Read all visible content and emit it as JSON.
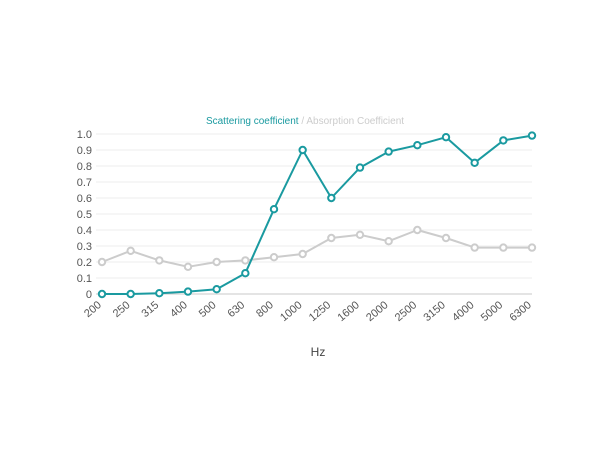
{
  "chart_data": {
    "type": "line",
    "title": "",
    "xlabel": "Hz",
    "ylabel": "",
    "categories": [
      "200",
      "250",
      "315",
      "400",
      "500",
      "630",
      "800",
      "1000",
      "1250",
      "1600",
      "2000",
      "2500",
      "3150",
      "4000",
      "5000",
      "6300"
    ],
    "yticks": [
      "0",
      "0.1",
      "0.2",
      "0.3",
      "0.4",
      "0.5",
      "0.6",
      "0.7",
      "0.8",
      "0.9",
      "1.0"
    ],
    "ylim": [
      0,
      1.0
    ],
    "grid": true,
    "legend_position": "top-center",
    "legend_separator": " / ",
    "series": [
      {
        "name": "Scattering coefficient",
        "color": "#1a9aa0",
        "values": [
          0.0,
          0.0,
          0.005,
          0.015,
          0.03,
          0.13,
          0.53,
          0.9,
          0.6,
          0.79,
          0.89,
          0.93,
          0.98,
          0.82,
          0.96,
          0.99
        ]
      },
      {
        "name": "Absorption Coefficient",
        "color": "#cccccc",
        "values": [
          0.2,
          0.27,
          0.21,
          0.17,
          0.2,
          0.21,
          0.23,
          0.25,
          0.35,
          0.37,
          0.33,
          0.4,
          0.35,
          0.29,
          0.29,
          0.29
        ]
      }
    ]
  }
}
